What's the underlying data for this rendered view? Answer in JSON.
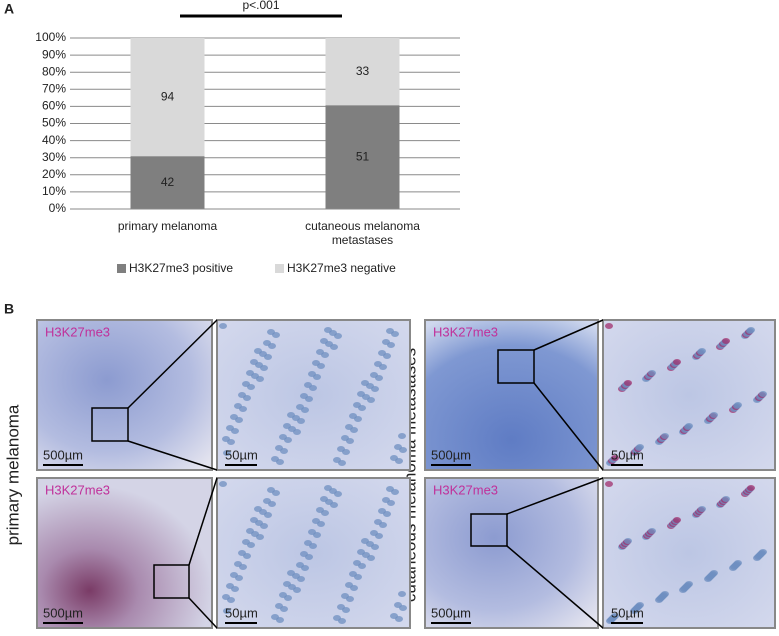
{
  "panel_labels": {
    "a": "A",
    "b": "B"
  },
  "chart_data": {
    "type": "bar",
    "stacked": true,
    "categories": [
      "primary melanoma",
      "cutaneous melanoma metastases"
    ],
    "series": [
      {
        "name": "H3K27me3 positive",
        "color": "#7f7f7f",
        "values": [
          30.9,
          60.7
        ],
        "counts": [
          42,
          51
        ]
      },
      {
        "name": "H3K27me3 negative",
        "color": "#d9d9d9",
        "values": [
          69.1,
          39.3
        ],
        "counts": [
          94,
          33
        ]
      }
    ],
    "ylim": [
      0,
      100
    ],
    "yticks": [
      {
        "value": 0,
        "label": "0%"
      },
      {
        "value": 10,
        "label": "10%"
      },
      {
        "value": 20,
        "label": "20%"
      },
      {
        "value": 30,
        "label": "30%"
      },
      {
        "value": 40,
        "label": "40%"
      },
      {
        "value": 50,
        "label": "50%"
      },
      {
        "value": 60,
        "label": "60%"
      },
      {
        "value": 70,
        "label": "70%"
      },
      {
        "value": 80,
        "label": "80%"
      },
      {
        "value": 90,
        "label": "90%"
      },
      {
        "value": 100,
        "label": "100%"
      }
    ],
    "grid": true,
    "legend": "bottom",
    "annotation": "p<.001"
  },
  "panel_b": {
    "row_label_left": "primary melanoma",
    "row_label_right": "cutaneous melanoma metastases",
    "images": [
      {
        "stain": "H3K27me3",
        "scale": "500µm",
        "zoom_scale": "50µm"
      },
      {
        "stain": "H3K27me3",
        "scale": "500µm",
        "zoom_scale": "50µm"
      },
      {
        "stain": "H3K27me3",
        "scale": "500µm",
        "zoom_scale": "50µm"
      },
      {
        "stain": "H3K27me3",
        "scale": "500µm",
        "zoom_scale": "50µm"
      }
    ]
  }
}
